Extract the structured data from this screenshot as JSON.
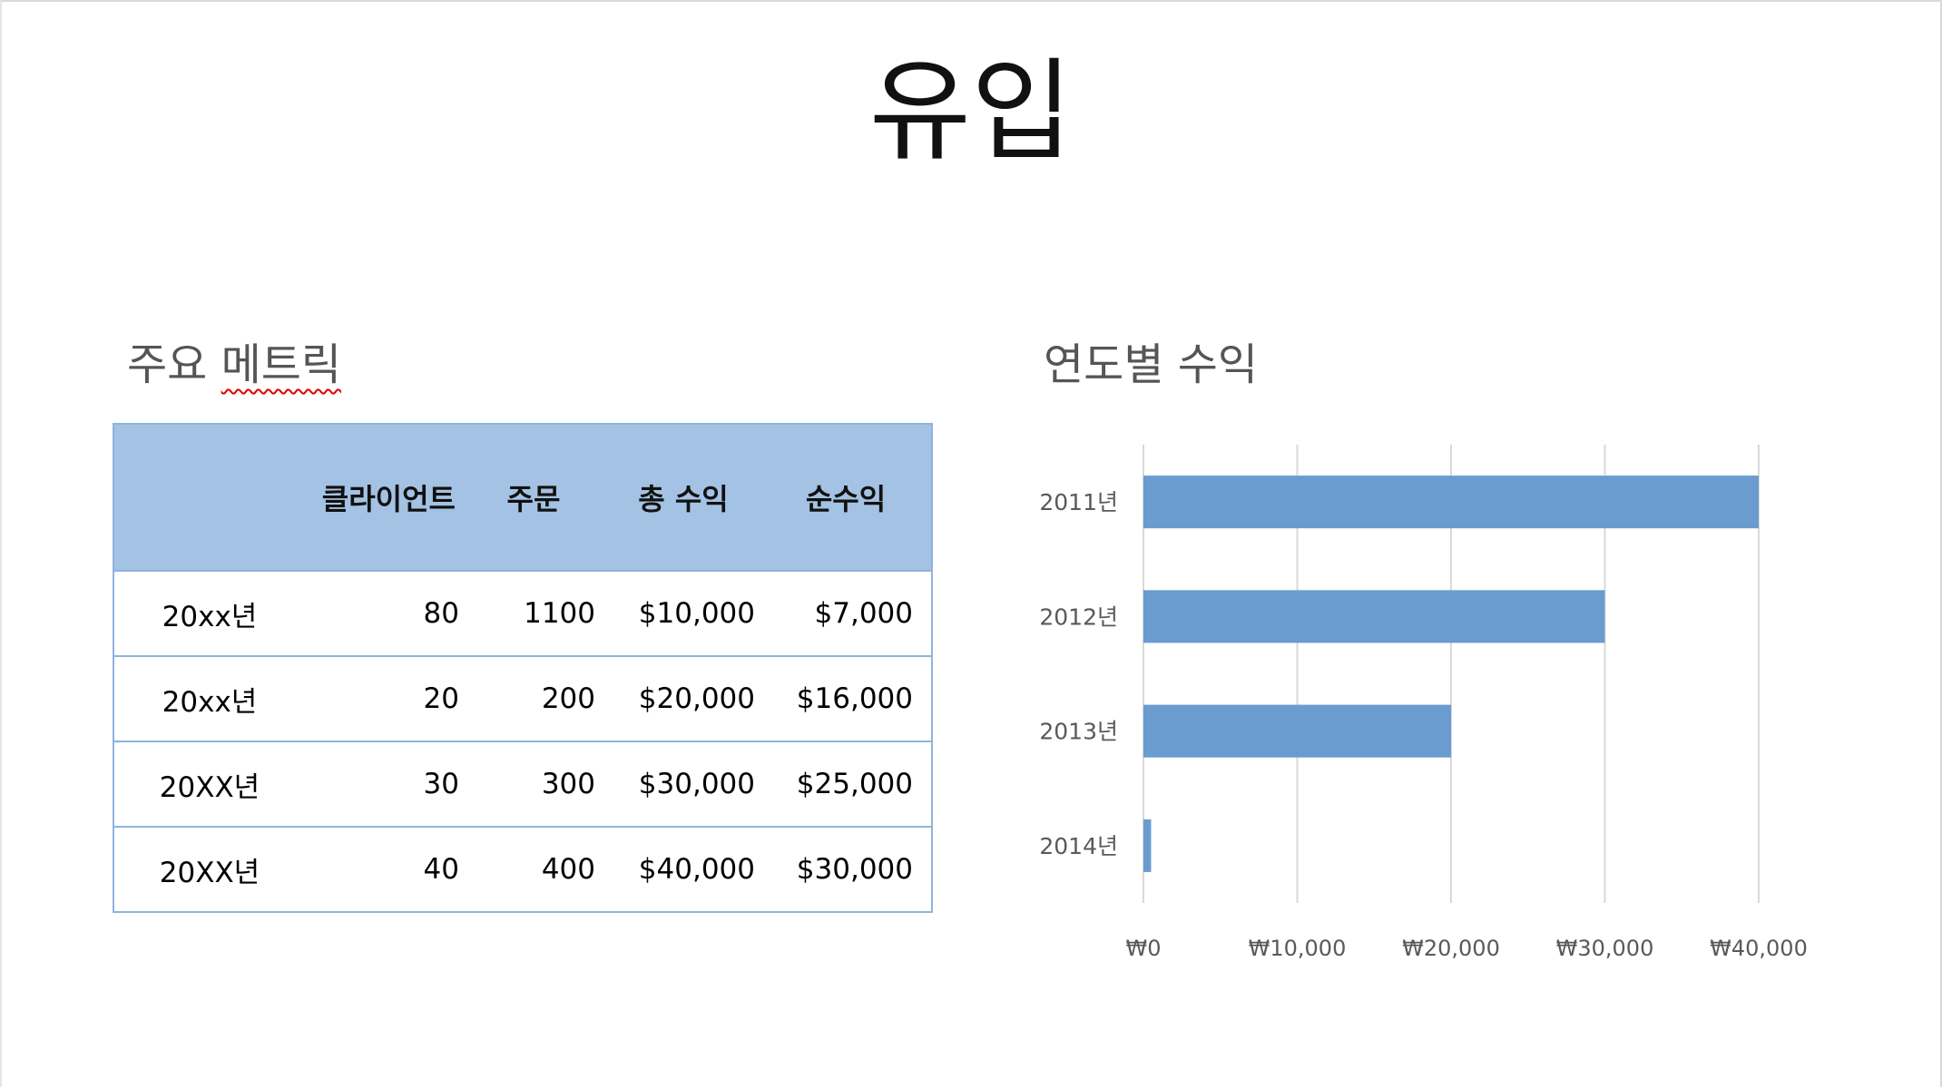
{
  "slide": {
    "title": "유입"
  },
  "metrics": {
    "title": "주요 메트릭",
    "headers": [
      "",
      "클라이언트",
      "주문",
      "총 수익",
      "순수익"
    ],
    "rows": [
      [
        "20xx년",
        "80",
        "1100",
        "$10,000",
        "$7,000"
      ],
      [
        "20xx년",
        "20",
        "200",
        "$20,000",
        "$16,000"
      ],
      [
        "20XX년",
        "30",
        "300",
        "$30,000",
        "$25,000"
      ],
      [
        "20XX년",
        "40",
        "400",
        "$40,000",
        "$30,000"
      ]
    ]
  },
  "revenue": {
    "title": "연도별 수익"
  },
  "chart_data": {
    "type": "bar",
    "orientation": "horizontal",
    "categories": [
      "2011년",
      "2012년",
      "2013년",
      "2014년"
    ],
    "values": [
      40000,
      30000,
      20000,
      500
    ],
    "xlim": [
      0,
      40000
    ],
    "xticks": [
      "₩0",
      "₩10,000",
      "₩20,000",
      "₩30,000",
      "₩40,000"
    ],
    "grid": true,
    "color": "#6a9cd0",
    "gridColor": "#d9d9d9"
  }
}
